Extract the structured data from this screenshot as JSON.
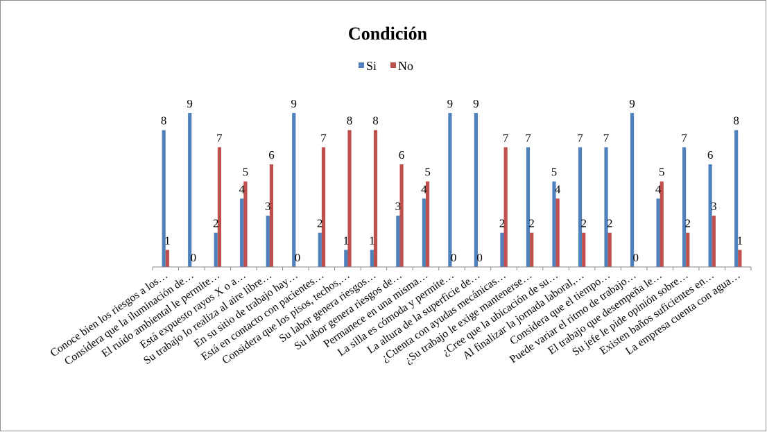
{
  "chart_data": {
    "type": "bar",
    "title": "Condición",
    "xlabel": "",
    "ylabel": "",
    "ylim": [
      0,
      9
    ],
    "grid": false,
    "legend_position": "top",
    "colors": {
      "Si": "#4f81bd",
      "No": "#c0504d"
    },
    "categories": [
      "Conoce bien los riesgos a los…",
      "Considera que la iluminación de…",
      "El ruido ambiental le permite…",
      "Está expuesto rayos X o a…",
      "Su trabajo lo realiza al aire libre…",
      "En su sitio de trabajo hay…",
      "Está en contacto con pacientes…",
      "Considera que los pisos, techos,…",
      "Su labor genera riesgos…",
      "Su labor genera riesgos de…",
      "Permanece en una misma…",
      "La silla es cómoda y permite…",
      "La altura de la superficie de…",
      "¿Cuenta con ayudas mecánicas…",
      "¿Su trabajo le exige mantenerse…",
      "¿Cree que la ubicación de su…",
      "Al finalizar la jornada laboral,…",
      "Considera que el tiempo…",
      "Puede variar el ritmo de trabajo…",
      "El trabajo que desempeña le…",
      "Su jefe le pide opinión sobre…",
      "Existen baños suficientes en…",
      "La empresa cuenta con agua…"
    ],
    "series": [
      {
        "name": "Si",
        "values": [
          8,
          9,
          2,
          4,
          3,
          9,
          2,
          1,
          1,
          3,
          4,
          9,
          9,
          2,
          7,
          5,
          7,
          7,
          9,
          4,
          7,
          6,
          8
        ]
      },
      {
        "name": "No",
        "values": [
          1,
          0,
          7,
          5,
          6,
          0,
          7,
          8,
          8,
          6,
          5,
          0,
          0,
          7,
          2,
          4,
          2,
          2,
          0,
          5,
          2,
          3,
          1
        ]
      }
    ]
  }
}
